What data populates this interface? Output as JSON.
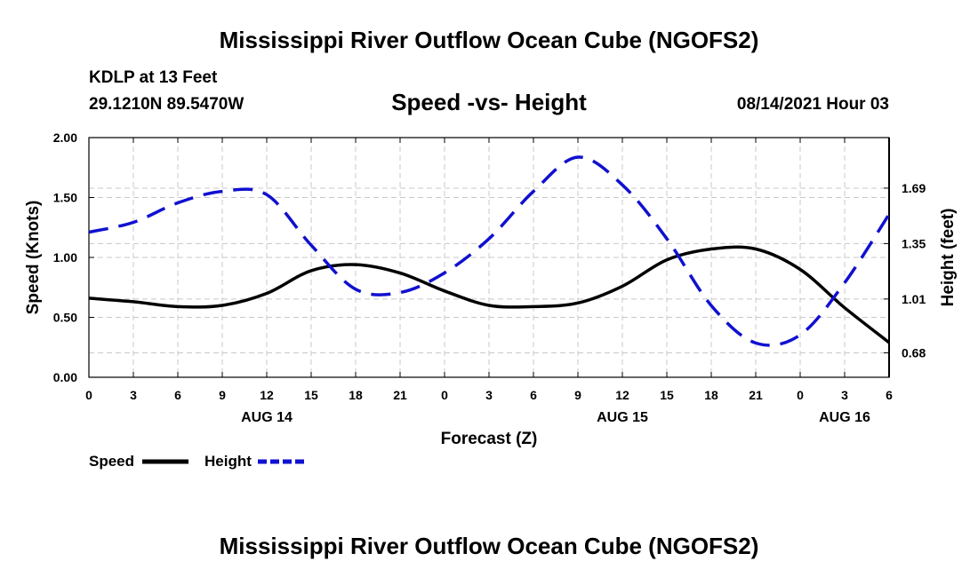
{
  "header": {
    "title": "Mississippi River Outflow Ocean Cube (NGOFS2)",
    "station": "KDLP at 13 Feet",
    "coords": "29.1210N  89.5470W",
    "subtitle": "Speed -vs- Height",
    "datetime": "08/14/2021 Hour 03"
  },
  "footer": {
    "title": "Mississippi River Outflow Ocean Cube (NGOFS2)"
  },
  "chart_data": {
    "type": "line",
    "title": "Speed -vs- Height",
    "xlabel": "Forecast (Z)",
    "ylabel": "Speed (Knots)",
    "y2label": "Height (feet)",
    "x_hours": [
      0,
      3,
      6,
      9,
      12,
      15,
      18,
      21,
      24,
      27,
      30,
      33,
      36,
      39,
      42,
      45,
      48,
      51,
      54
    ],
    "x_tick_labels": [
      "0",
      "3",
      "6",
      "9",
      "12",
      "15",
      "18",
      "21",
      "0",
      "3",
      "6",
      "9",
      "12",
      "15",
      "18",
      "21",
      "0",
      "3",
      "6"
    ],
    "date_labels": [
      {
        "label": "AUG 14",
        "hour": 12
      },
      {
        "label": "AUG 15",
        "hour": 36
      },
      {
        "label": "AUG 16",
        "hour": 51
      }
    ],
    "xlim": [
      0,
      54
    ],
    "ylim": [
      0,
      2.0
    ],
    "y_ticks": [
      "0.00",
      "0.50",
      "1.00",
      "1.50",
      "2.00"
    ],
    "y2lim": [
      0.53,
      2.0
    ],
    "y2_ticks": [
      "0.68",
      "1.01",
      "1.35",
      "1.69"
    ],
    "grid": true,
    "legend_position": "bottom-left",
    "series": [
      {
        "name": "Speed",
        "axis": "left",
        "color": "#000000",
        "style": "solid",
        "values": [
          0.66,
          0.63,
          0.59,
          0.6,
          0.7,
          0.89,
          0.94,
          0.87,
          0.72,
          0.6,
          0.59,
          0.62,
          0.76,
          0.98,
          1.07,
          1.07,
          0.9,
          0.58,
          0.29
        ]
      },
      {
        "name": "Height",
        "axis": "right",
        "color": "#1010d0",
        "style": "dashed",
        "values": [
          1.42,
          1.48,
          1.6,
          1.67,
          1.65,
          1.34,
          1.07,
          1.05,
          1.17,
          1.38,
          1.67,
          1.88,
          1.71,
          1.38,
          0.97,
          0.74,
          0.79,
          1.11,
          1.53
        ]
      }
    ]
  }
}
